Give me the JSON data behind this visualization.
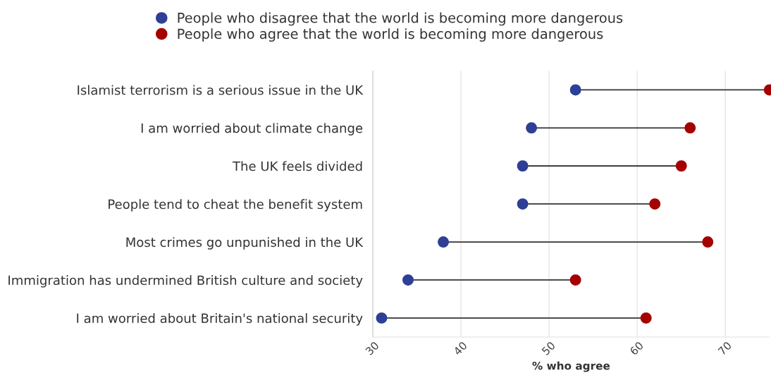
{
  "chart_data": {
    "type": "scatter",
    "orientation": "horizontal",
    "xlabel": "% who agree",
    "categories": [
      "Islamist terrorism is a serious issue in the UK",
      "I am worried about climate change",
      "The UK feels divided",
      "People tend to cheat the benefit system",
      "Most crimes go unpunished in the UK",
      "Immigration has undermined British culture and society",
      "I am worried about Britain's national security"
    ],
    "series": [
      {
        "name": "People who disagree that the world is becoming more dangerous",
        "color": "#2e3f96",
        "values": [
          53,
          48,
          47,
          47,
          38,
          34,
          31
        ]
      },
      {
        "name": "People who agree that the world is becoming more dangerous",
        "color": "#a50000",
        "values": [
          75,
          66,
          65,
          62,
          68,
          53,
          61
        ]
      }
    ],
    "xlim": [
      30,
      75
    ],
    "xticks": [
      30,
      40,
      50,
      60,
      70
    ],
    "grid": "x",
    "legend": "top",
    "marker": "circle"
  }
}
